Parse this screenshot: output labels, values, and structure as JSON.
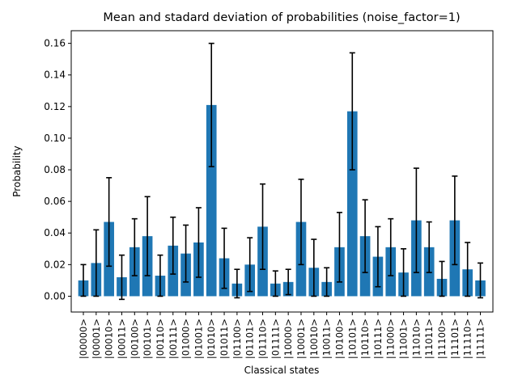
{
  "chart_data": {
    "type": "bar",
    "title": "Mean and stadard deviation of probabilities (noise_factor=1)",
    "xlabel": "Classical states",
    "ylabel": "Probability",
    "ylim": [
      -0.01,
      0.168
    ],
    "yticks": [
      "0.00",
      "0.02",
      "0.04",
      "0.06",
      "0.08",
      "0.10",
      "0.12",
      "0.14",
      "0.16"
    ],
    "grid": false,
    "legend": "none",
    "bar_color": "#1f77b4",
    "error_color": "#000000",
    "categories": [
      "|00000>",
      "|00001>",
      "|00010>",
      "|00011>",
      "|00100>",
      "|00101>",
      "|00110>",
      "|00111>",
      "|01000>",
      "|01001>",
      "|01010>",
      "|01011>",
      "|01100>",
      "|01101>",
      "|01110>",
      "|01111>",
      "|10000>",
      "|10001>",
      "|10010>",
      "|10011>",
      "|10100>",
      "|10101>",
      "|10110>",
      "|10111>",
      "|11000>",
      "|11001>",
      "|11010>",
      "|11011>",
      "|11100>",
      "|11101>",
      "|11110>",
      "|11111>"
    ],
    "values": [
      0.01,
      0.021,
      0.047,
      0.012,
      0.031,
      0.038,
      0.013,
      0.032,
      0.027,
      0.034,
      0.121,
      0.024,
      0.008,
      0.02,
      0.044,
      0.008,
      0.009,
      0.047,
      0.018,
      0.009,
      0.031,
      0.117,
      0.038,
      0.025,
      0.031,
      0.015,
      0.048,
      0.031,
      0.011,
      0.048,
      0.017,
      0.01
    ],
    "errors": [
      0.01,
      0.021,
      0.028,
      0.014,
      0.018,
      0.025,
      0.013,
      0.018,
      0.018,
      0.022,
      0.039,
      0.019,
      0.009,
      0.017,
      0.027,
      0.008,
      0.008,
      0.027,
      0.018,
      0.009,
      0.022,
      0.037,
      0.023,
      0.019,
      0.018,
      0.015,
      0.033,
      0.016,
      0.011,
      0.028,
      0.017,
      0.011
    ]
  }
}
